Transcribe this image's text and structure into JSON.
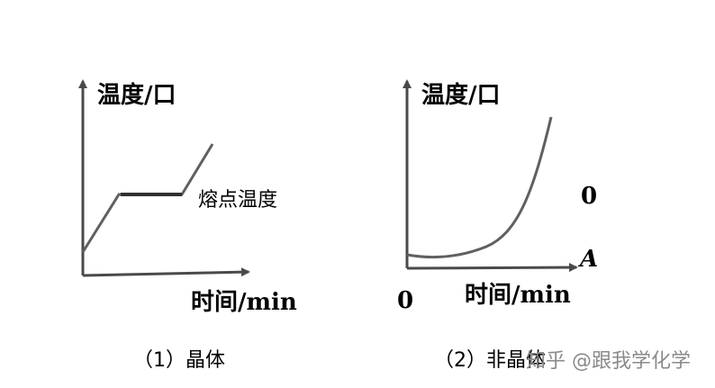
{
  "left_panel": {
    "y_axis_label": "温度/口",
    "x_axis_label": "时间/min",
    "plateau_label": "熔点温度",
    "caption": "（1）晶体"
  },
  "right_panel": {
    "y_axis_label": "温度/口",
    "x_axis_label": "时间/min",
    "origin_label": "0",
    "right_digit": "0",
    "right_letter": "A",
    "caption": "（2）非晶体"
  },
  "watermark": "知乎 @跟我学化学",
  "colors": {
    "curve": "#606060",
    "axis": "#4a4a4a",
    "text": "#000000"
  }
}
